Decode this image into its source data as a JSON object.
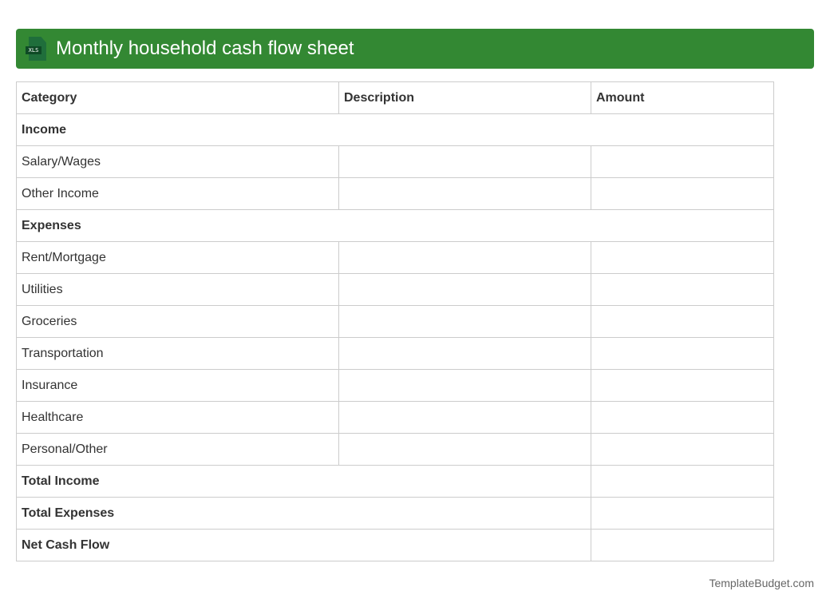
{
  "header": {
    "title": "Monthly household cash flow sheet",
    "icon": "xls-file-icon",
    "icon_label": "XLS",
    "color": "#338833"
  },
  "table": {
    "columns": [
      "Category",
      "Description",
      "Amount"
    ],
    "income_section": "Income",
    "income_rows": [
      "Salary/Wages",
      "Other Income"
    ],
    "expenses_section": "Expenses",
    "expense_rows": [
      "Rent/Mortgage",
      "Utilities",
      "Groceries",
      "Transportation",
      "Insurance",
      "Healthcare",
      "Personal/Other"
    ],
    "totals": [
      "Total Income",
      "Total Expenses",
      "Net Cash Flow"
    ]
  },
  "footer": {
    "brand": "TemplateBudget.com"
  }
}
